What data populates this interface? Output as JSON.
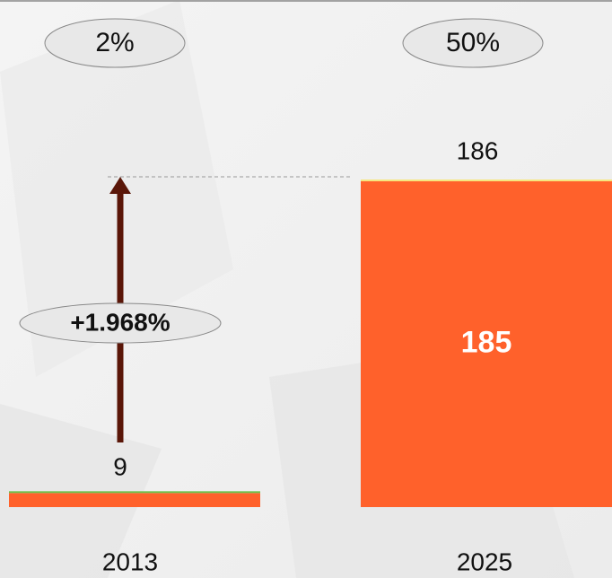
{
  "chart_data": {
    "type": "stacked_bar",
    "categories": [
      "2013",
      "2025"
    ],
    "series": [
      {
        "color": "#ff612b",
        "values": [
          8,
          185
        ],
        "value_labels": [
          null,
          "185"
        ]
      },
      {
        "colors": [
          "#6cc04a",
          "#f7e67e"
        ],
        "values": [
          1,
          1
        ]
      }
    ],
    "totals": [
      9,
      186
    ],
    "shares": [
      2,
      50
    ],
    "share_labels": [
      "2%",
      "50%"
    ],
    "annotation": "+1.968%"
  }
}
